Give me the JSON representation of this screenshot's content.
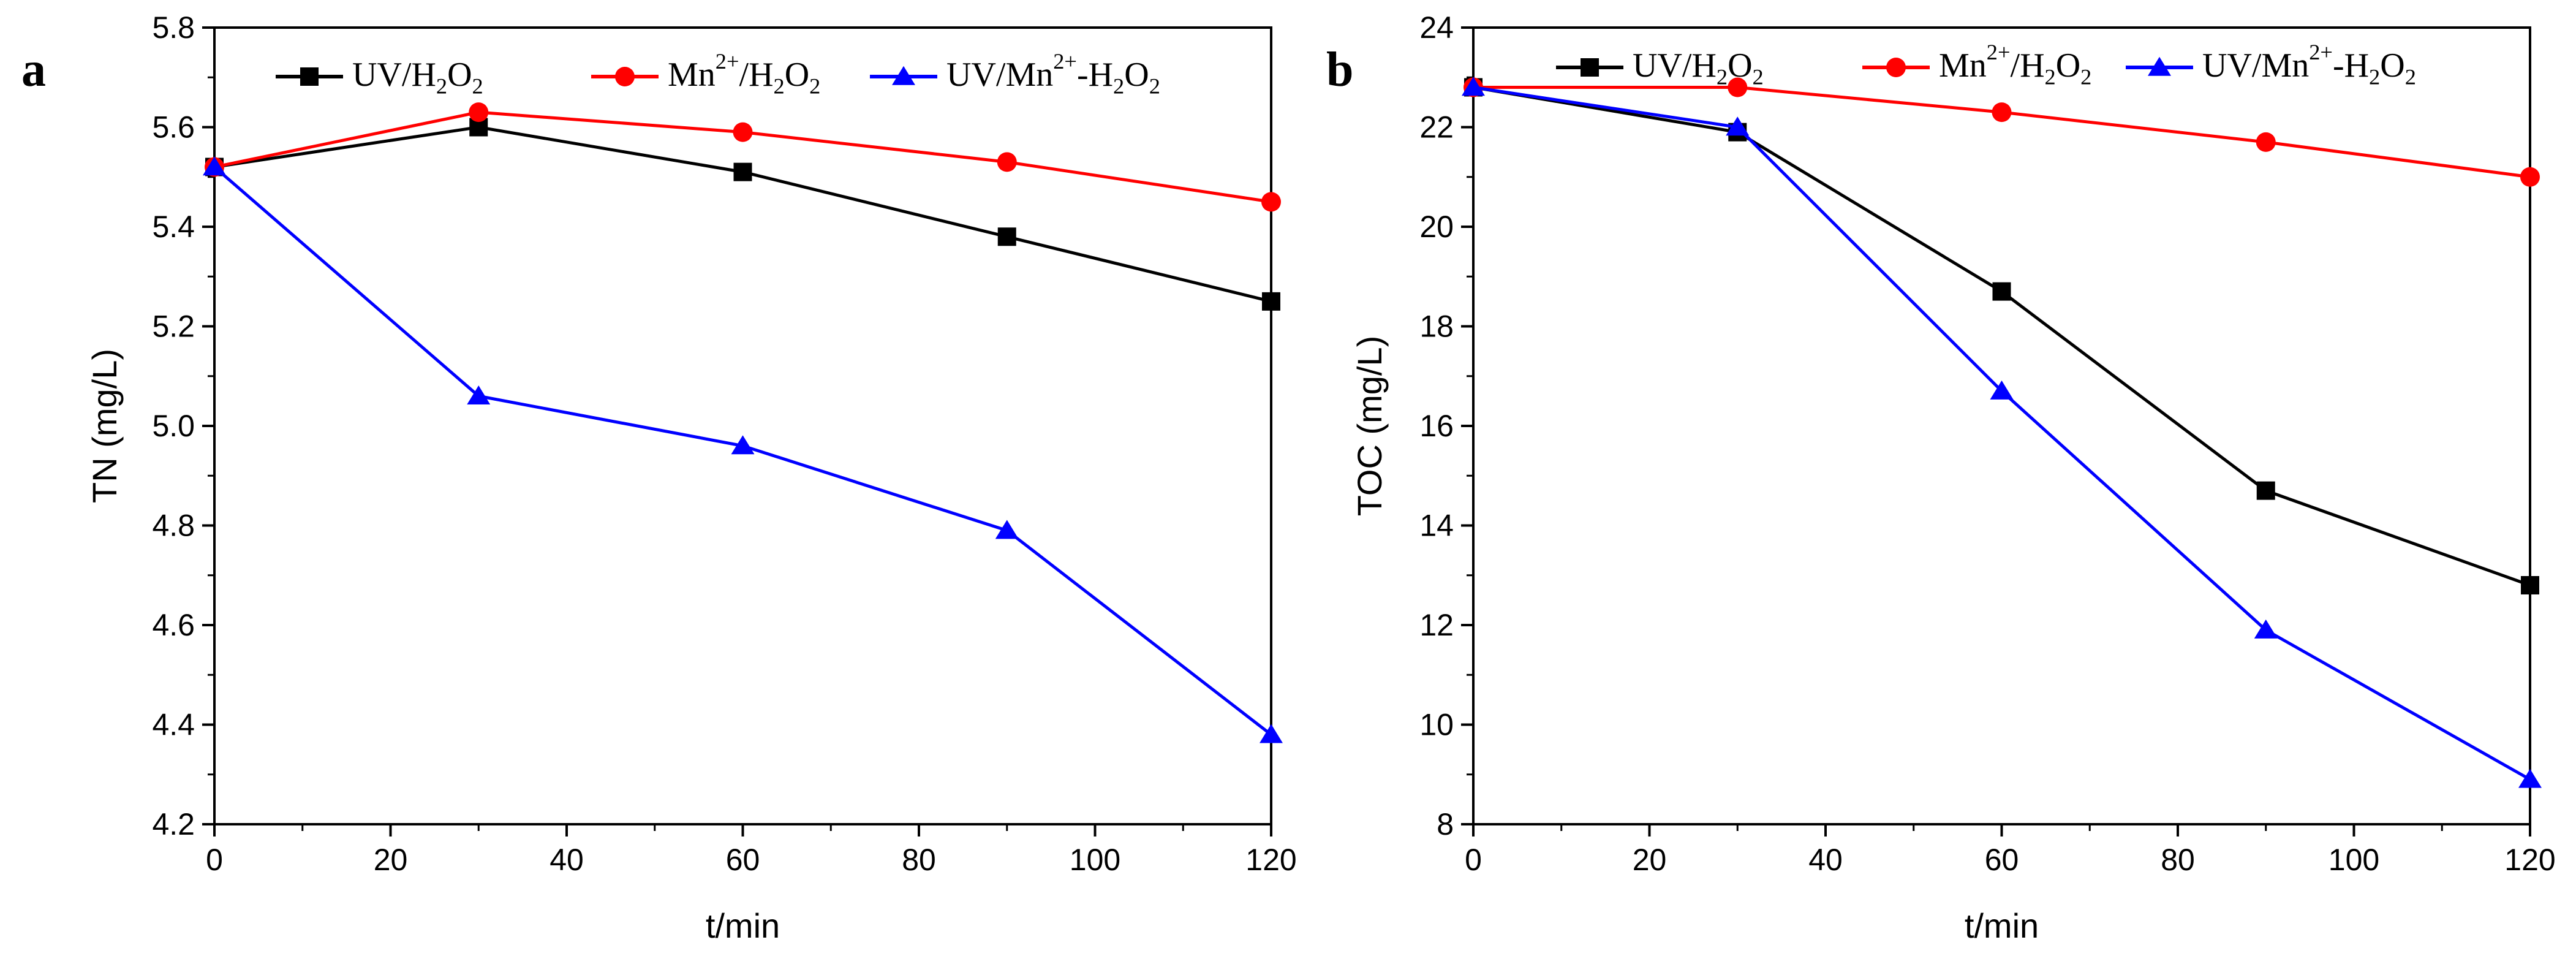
{
  "chart_data": [
    {
      "panel": "a",
      "type": "line",
      "xlabel": "t/min",
      "ylabel": "TN (mg/L)",
      "xlim": [
        0,
        120
      ],
      "ylim": [
        4.2,
        5.8
      ],
      "x": [
        0,
        30,
        60,
        90,
        120
      ],
      "xticks": [
        "0",
        "20",
        "40",
        "60",
        "80",
        "100",
        "120"
      ],
      "xtick_values": [
        0,
        20,
        40,
        60,
        80,
        100,
        120
      ],
      "yticks": [
        "4.2",
        "4.4",
        "4.6",
        "4.8",
        "5.0",
        "5.2",
        "5.4",
        "5.6",
        "5.8"
      ],
      "ytick_values": [
        4.2,
        4.4,
        4.6,
        4.8,
        5.0,
        5.2,
        5.4,
        5.6,
        5.8
      ],
      "legend_position": "top",
      "series": [
        {
          "name": "UV/H2O2",
          "color": "#000000",
          "marker": "square",
          "values": [
            5.52,
            5.6,
            5.51,
            5.38,
            5.25
          ]
        },
        {
          "name": "Mn2+/H2O2",
          "color": "#ff0000",
          "marker": "circle",
          "values": [
            5.52,
            5.63,
            5.59,
            5.53,
            5.45
          ]
        },
        {
          "name": "UV/Mn2+-H2O2",
          "color": "#0000ff",
          "marker": "triangle",
          "values": [
            5.52,
            5.06,
            4.96,
            4.79,
            4.38
          ]
        }
      ]
    },
    {
      "panel": "b",
      "type": "line",
      "xlabel": "t/min",
      "ylabel": "TOC (mg/L)",
      "xlim": [
        0,
        120
      ],
      "ylim": [
        8,
        24
      ],
      "x": [
        0,
        30,
        60,
        90,
        120
      ],
      "xticks": [
        "0",
        "20",
        "40",
        "60",
        "80",
        "100",
        "120"
      ],
      "xtick_values": [
        0,
        20,
        40,
        60,
        80,
        100,
        120
      ],
      "yticks": [
        "8",
        "10",
        "12",
        "14",
        "16",
        "18",
        "20",
        "22",
        "24"
      ],
      "ytick_values": [
        8,
        10,
        12,
        14,
        16,
        18,
        20,
        22,
        24
      ],
      "legend_position": "top",
      "series": [
        {
          "name": "UV/H2O2",
          "color": "#000000",
          "marker": "square",
          "values": [
            22.8,
            21.9,
            18.7,
            14.7,
            12.8
          ]
        },
        {
          "name": "Mn2+/H2O2",
          "color": "#ff0000",
          "marker": "circle",
          "values": [
            22.8,
            22.8,
            22.3,
            21.7,
            21.0
          ]
        },
        {
          "name": "UV/Mn2+-H2O2",
          "color": "#0000ff",
          "marker": "triangle",
          "values": [
            22.8,
            22.0,
            16.7,
            11.9,
            8.9
          ]
        }
      ]
    }
  ]
}
